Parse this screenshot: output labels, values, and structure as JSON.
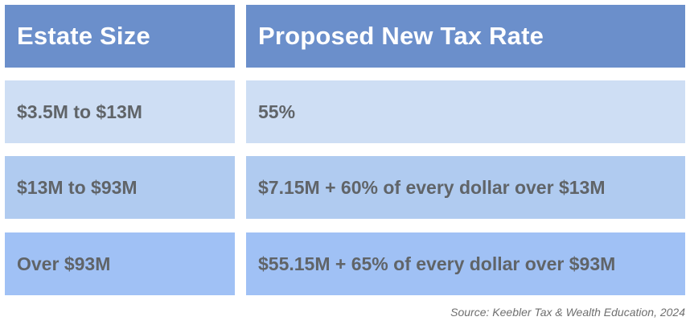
{
  "table": {
    "headers": [
      "Estate Size",
      "Proposed New Tax Rate"
    ],
    "rows": [
      [
        "$3.5M to $13M",
        "55%"
      ],
      [
        "$13M to $93M",
        "$7.15M + 60% of every dollar over $13M"
      ],
      [
        "Over $93M",
        "$55.15M + 65% of every dollar over $93M"
      ]
    ]
  },
  "source": "Source: Keebler Tax & Wealth Education, 2024",
  "colors": {
    "header_bg": "#6b8fcb",
    "header_text": "#ffffff",
    "row1_bg": "#cedef4",
    "row2_bg": "#b0cbf0",
    "row3_bg": "#a0c1f5",
    "row_text": "#606468"
  }
}
